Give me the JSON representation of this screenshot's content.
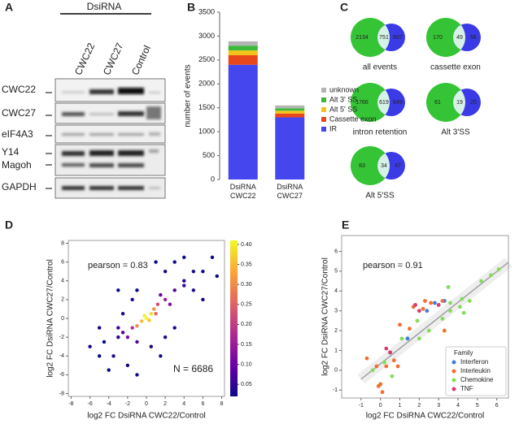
{
  "panels": [
    "A",
    "B",
    "C",
    "D",
    "E"
  ],
  "blot": {
    "group_label": "DsiRNA",
    "lanes": [
      "CWC22",
      "CWC27",
      "Control"
    ],
    "rows": [
      "CWC22",
      "CWC27",
      "eIF4A3",
      "Y14",
      "Magoh",
      "GAPDH"
    ]
  },
  "venn": [
    {
      "label": "all events",
      "left": "2134",
      "center": "751",
      "right": "807"
    },
    {
      "label": "cassette exon",
      "left": "170",
      "center": "49",
      "right": "56"
    },
    {
      "label": "intron retention",
      "left": "1766",
      "center": "619",
      "right": "649"
    },
    {
      "label": "Alt 3'SS",
      "left": "61",
      "center": "19",
      "right": "25"
    },
    {
      "label": "Alt 5'SS",
      "left": "83",
      "center": "34",
      "right": "47"
    }
  ],
  "chart_data": [
    {
      "type": "stacked_bar",
      "ylabel": "number of events",
      "categories": [
        "DsiRNA CWC22",
        "DsiRNA CWC27"
      ],
      "series": [
        {
          "name": "IR",
          "color": "#4646ee",
          "values": [
            2400,
            1300
          ]
        },
        {
          "name": "Cassette exon",
          "color": "#e8471c",
          "values": [
            200,
            80
          ]
        },
        {
          "name": "Alt 5' SS",
          "color": "#f2c318",
          "values": [
            100,
            60
          ]
        },
        {
          "name": "Alt 3' SS",
          "color": "#3cb83c",
          "values": [
            100,
            50
          ]
        },
        {
          "name": "unknown",
          "color": "#b4b4b4",
          "values": [
            90,
            60
          ]
        }
      ],
      "ylim": [
        0,
        3500
      ],
      "yticks": [
        0,
        500,
        1000,
        1500,
        2000,
        2500,
        3000,
        3500
      ],
      "legend": "right"
    },
    {
      "type": "density_scatter",
      "xlabel": "log2 FC DsiRNA CWC22/Control",
      "ylabel": "log2 FC DsiRNA CWC27/Control",
      "annotations": [
        "pearson = 0.83",
        "N = 6686"
      ],
      "x": [
        -5,
        -4,
        -3,
        -4.5,
        -3.5,
        -2,
        -6,
        -2.5,
        -1.5,
        -1,
        2,
        3,
        4,
        5,
        6,
        7,
        7.5,
        6,
        3,
        2,
        -1,
        4,
        1,
        5,
        -5,
        -3,
        0.5,
        1.5,
        -2,
        -1.5,
        -2.5,
        2,
        3,
        1.5,
        2.5,
        -1,
        -3,
        4,
        1,
        -0.5,
        0,
        0.5,
        -1,
        0.8,
        -0.2,
        1.2,
        0.3
      ],
      "y": [
        -4,
        -5.5,
        -2,
        -2.5,
        -4,
        -5,
        -3,
        0.5,
        2,
        3,
        5,
        6,
        4,
        5,
        5,
        6.5,
        4.5,
        2,
        -1,
        -2,
        -6,
        6.5,
        6,
        3,
        -1,
        3,
        -3,
        -4,
        -2,
        -1,
        -1.5,
        2,
        3,
        2.5,
        1.5,
        -2.5,
        -1,
        3.5,
        0.5,
        -0.3,
        0,
        0.5,
        -0.8,
        1,
        0.3,
        1.5,
        -0.2
      ],
      "color_values": [
        0.02,
        0.02,
        0.04,
        0.02,
        0.03,
        0.02,
        0.02,
        0.03,
        0.03,
        0.02,
        0.03,
        0.02,
        0.04,
        0.03,
        0.02,
        0.02,
        0.02,
        0.02,
        0.03,
        0.03,
        0.02,
        0.02,
        0.02,
        0.03,
        0.02,
        0.02,
        0.03,
        0.02,
        0.12,
        0.18,
        0.08,
        0.15,
        0.08,
        0.1,
        0.12,
        0.08,
        0.06,
        0.05,
        0.25,
        0.35,
        0.41,
        0.38,
        0.3,
        0.3,
        0.4,
        0.22,
        0.36
      ],
      "colormap": [
        "#0d0887",
        "#6a00a8",
        "#b12a90",
        "#e16462",
        "#fca636",
        "#f0f921"
      ],
      "clim": [
        0.02,
        0.41
      ],
      "cticks": [
        0.05,
        {
          "value": 0.1,
          "label": "0.10"
        },
        0.15,
        {
          "value": 0.2,
          "label": "0.20"
        },
        0.25,
        {
          "value": 0.3,
          "label": "0.30"
        },
        0.35,
        {
          "value": 0.4,
          "label": "0.40"
        }
      ],
      "xlim": [
        -8.3,
        8.3
      ],
      "ylim": [
        -8.3,
        8.3
      ],
      "xticks": [
        -8,
        -6,
        -4,
        -2,
        0,
        2,
        4,
        6,
        8
      ],
      "yticks": [
        -8,
        -6,
        -4,
        -2,
        0,
        2,
        4,
        6,
        8
      ]
    },
    {
      "type": "scatter",
      "xlabel": "log2 FC DsiRNA CWC22/Control",
      "ylabel": "log2 FC DsiRNA CWC27/Control",
      "annotations": [
        "pearson = 0.91"
      ],
      "legend_title": "Family",
      "legend": "lower right",
      "series": [
        {
          "name": "Interferon",
          "color": "#3f7fd9",
          "x": [
            0.5,
            2.8,
            2.4,
            1.4,
            3.3
          ],
          "y": [
            0.9,
            3.4,
            3.0,
            1.6,
            3.5
          ]
        },
        {
          "name": "Interleukin",
          "color": "#f07030",
          "x": [
            -0.7,
            -0.2,
            0,
            0.1,
            -0.1,
            0.7,
            0.9,
            2.3,
            2.6,
            2.2,
            3.2,
            1.5,
            3.3,
            0.3,
            1.0,
            1.7
          ],
          "y": [
            0.6,
            0.2,
            -0.7,
            -1.1,
            -0.8,
            0.5,
            0.2,
            3.5,
            3.4,
            3.1,
            3.5,
            2.1,
            2.0,
            0.2,
            2.3,
            3.2
          ]
        },
        {
          "name": "Chemokine",
          "color": "#84dc5a",
          "x": [
            -0.4,
            0.2,
            1.1,
            1.9,
            2.5,
            3.2,
            3.6,
            3.6,
            4.1,
            4.3,
            4.2,
            4.6,
            5.2,
            5.7,
            6.1,
            2.0,
            3.5,
            0.6
          ],
          "y": [
            0,
            0.4,
            1.6,
            2.5,
            2.0,
            2.6,
            3.4,
            3.0,
            3.2,
            2.9,
            3.6,
            3.5,
            4.5,
            4.8,
            5.1,
            1.6,
            4.2,
            -0.3
          ]
        },
        {
          "name": "TNF",
          "color": "#d63c6e",
          "x": [
            0.5,
            1.8,
            2.0,
            3.0,
            0.3
          ],
          "y": [
            0.9,
            3.3,
            3.0,
            3.3,
            1.1
          ]
        }
      ],
      "trend": {
        "color": "#a0a0a0",
        "x": [
          -1,
          6.6
        ],
        "y": [
          -0.45,
          5.45
        ]
      },
      "xlim": [
        -2,
        6.6
      ],
      "ylim": [
        -1.4,
        6.8
      ],
      "xticks": [
        -1,
        0,
        1,
        2,
        3,
        4,
        5,
        6
      ],
      "yticks": [
        -1,
        0,
        1,
        2,
        3,
        4,
        5,
        6
      ]
    }
  ]
}
